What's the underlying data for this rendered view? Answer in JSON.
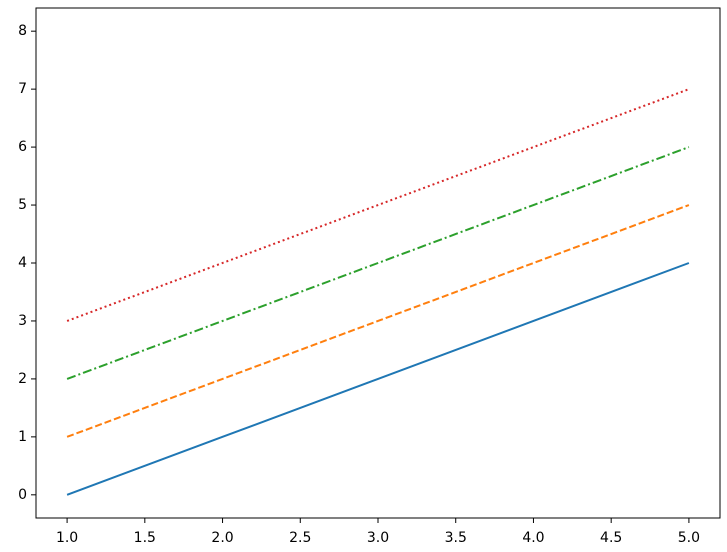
{
  "chart_data": {
    "type": "line",
    "x": [
      1,
      2,
      3,
      4,
      5
    ],
    "series": [
      {
        "color": "#1f77b4",
        "linestyle": "solid",
        "values": [
          0,
          1,
          2,
          3,
          4
        ]
      },
      {
        "color": "#ff7f0e",
        "linestyle": "dashed",
        "values": [
          1,
          2,
          3,
          4,
          5
        ]
      },
      {
        "color": "#2ca02c",
        "linestyle": "dashdot",
        "values": [
          2,
          3,
          4,
          5,
          6
        ]
      },
      {
        "color": "#d62728",
        "linestyle": "dotted",
        "values": [
          3,
          4,
          5,
          6,
          7
        ]
      }
    ],
    "xlim": [
      0.8,
      5.2
    ],
    "xticks": [
      {
        "value": 1,
        "label": "1.0"
      },
      {
        "value": 1.5,
        "label": "1.5"
      },
      {
        "value": 2,
        "label": "2.0"
      },
      {
        "value": 2.5,
        "label": "2.5"
      },
      {
        "value": 3,
        "label": "3.0"
      },
      {
        "value": 3.5,
        "label": "3.5"
      },
      {
        "value": 4,
        "label": "4.0"
      },
      {
        "value": 4.5,
        "label": "4.5"
      },
      {
        "value": 5,
        "label": "5.0"
      }
    ],
    "ylim": [
      -0.4,
      8.4
    ],
    "yticks": [
      0,
      1,
      2,
      3,
      4,
      5,
      6,
      7,
      8
    ],
    "grid": false
  }
}
